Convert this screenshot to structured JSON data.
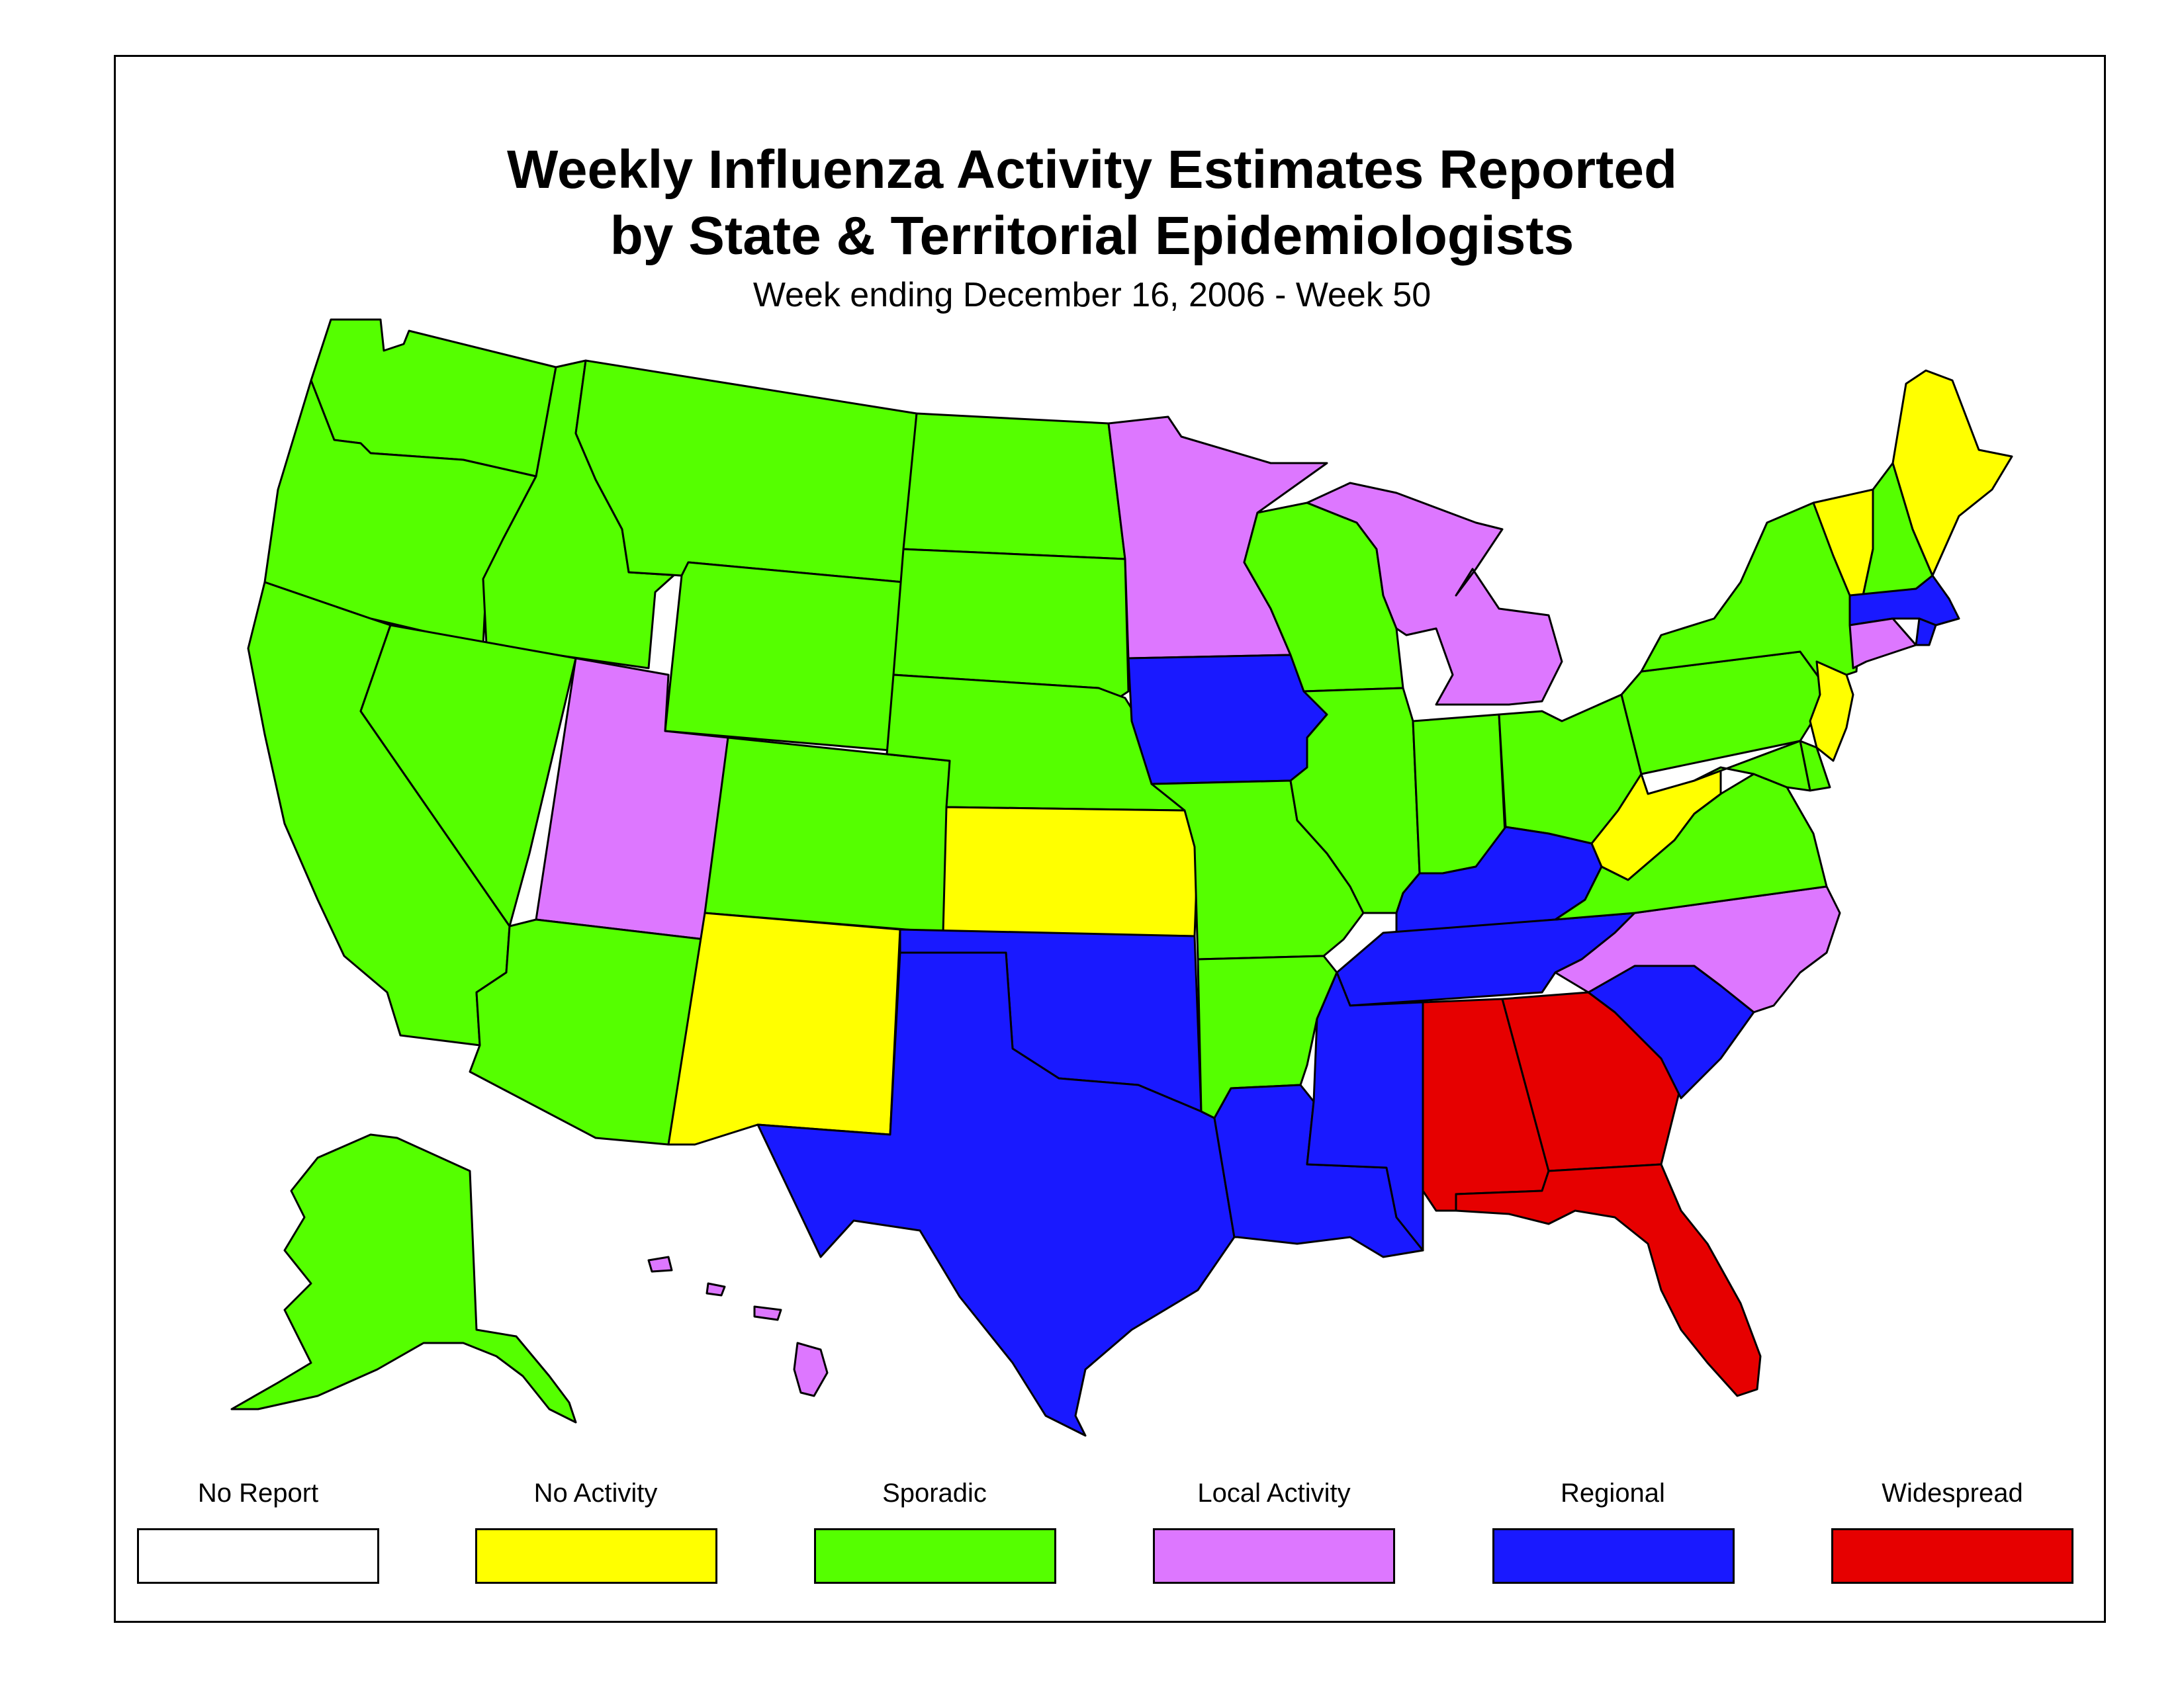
{
  "title_line1": "Weekly Influenza Activity Estimates Reported",
  "title_line2": "by State & Territorial Epidemiologists",
  "subtitle": "Week ending December 16, 2006 - Week 50",
  "colors": {
    "no_report": "#ffffff",
    "no_activity": "#ffff00",
    "sporadic": "#55ff00",
    "local_activity": "#dd77ff",
    "regional": "#1919ff",
    "widespread": "#e60000"
  },
  "legend": [
    {
      "key": "no_report",
      "label": "No Report"
    },
    {
      "key": "no_activity",
      "label": "No Activity"
    },
    {
      "key": "sporadic",
      "label": "Sporadic"
    },
    {
      "key": "local_activity",
      "label": "Local Activity"
    },
    {
      "key": "regional",
      "label": "Regional"
    },
    {
      "key": "widespread",
      "label": "Widespread"
    }
  ],
  "states": {
    "WA": "sporadic",
    "OR": "sporadic",
    "CA": "sporadic",
    "ID": "sporadic",
    "NV": "sporadic",
    "MT": "sporadic",
    "WY": "sporadic",
    "UT": "local_activity",
    "AZ": "sporadic",
    "CO": "sporadic",
    "NM": "no_activity",
    "ND": "sporadic",
    "SD": "sporadic",
    "NE": "sporadic",
    "KS": "no_activity",
    "OK": "regional",
    "TX": "regional",
    "MN": "local_activity",
    "IA": "regional",
    "MO": "sporadic",
    "AR": "sporadic",
    "LA": "regional",
    "WI": "sporadic",
    "MI": "local_activity",
    "IL": "sporadic",
    "IN": "sporadic",
    "OH": "sporadic",
    "KY": "regional",
    "TN": "regional",
    "MS": "regional",
    "AL": "widespread",
    "GA": "widespread",
    "FL": "widespread",
    "SC": "regional",
    "NC": "local_activity",
    "VA": "sporadic",
    "WV": "no_activity",
    "PA": "sporadic",
    "NY": "sporadic",
    "VT": "no_activity",
    "NH": "sporadic",
    "ME": "no_activity",
    "MA": "regional",
    "RI": "regional",
    "CT": "local_activity",
    "NJ": "no_activity",
    "DE": "sporadic",
    "MD": "sporadic",
    "AK": "sporadic",
    "HI": "local_activity"
  }
}
